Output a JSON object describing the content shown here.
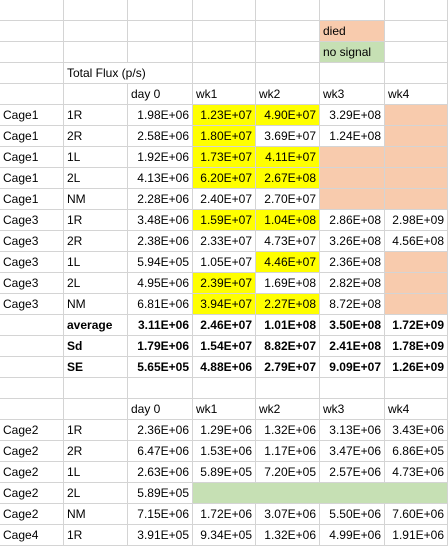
{
  "legend": {
    "died": "died",
    "no_signal": "no signal"
  },
  "title": "Total Flux (p/s)",
  "table1": {
    "headers": [
      "day 0",
      "wk1",
      "wk2",
      "wk3",
      "wk4"
    ],
    "rows": [
      {
        "cage": "Cage1",
        "id": "1R",
        "vals": [
          "1.98E+06",
          "1.23E+07",
          "4.90E+07",
          "3.29E+08",
          ""
        ]
      },
      {
        "cage": "Cage1",
        "id": "2R",
        "vals": [
          "2.58E+06",
          "1.80E+07",
          "3.69E+07",
          "1.24E+08",
          ""
        ]
      },
      {
        "cage": "Cage1",
        "id": "1L",
        "vals": [
          "1.92E+06",
          "1.73E+07",
          "4.11E+07",
          "",
          ""
        ]
      },
      {
        "cage": "Cage1",
        "id": "2L",
        "vals": [
          "4.13E+06",
          "6.20E+07",
          "2.67E+08",
          "",
          ""
        ]
      },
      {
        "cage": "Cage1",
        "id": "NM",
        "vals": [
          "2.28E+06",
          "2.40E+07",
          "2.70E+07",
          "",
          ""
        ]
      },
      {
        "cage": "Cage3",
        "id": "1R",
        "vals": [
          "3.48E+06",
          "1.59E+07",
          "1.04E+08",
          "2.86E+08",
          "2.98E+09"
        ]
      },
      {
        "cage": "Cage3",
        "id": "2R",
        "vals": [
          "2.38E+06",
          "2.33E+07",
          "4.73E+07",
          "3.26E+08",
          "4.56E+08"
        ]
      },
      {
        "cage": "Cage3",
        "id": "1L",
        "vals": [
          "5.94E+05",
          "1.05E+07",
          "4.46E+07",
          "2.36E+08",
          ""
        ]
      },
      {
        "cage": "Cage3",
        "id": "2L",
        "vals": [
          "4.95E+06",
          "2.39E+07",
          "1.69E+08",
          "2.82E+08",
          ""
        ]
      },
      {
        "cage": "Cage3",
        "id": "NM",
        "vals": [
          "6.81E+06",
          "3.94E+07",
          "2.27E+08",
          "8.72E+08",
          ""
        ]
      }
    ],
    "stats": [
      {
        "label": "average",
        "vals": [
          "3.11E+06",
          "2.46E+07",
          "1.01E+08",
          "3.50E+08",
          "1.72E+09"
        ]
      },
      {
        "label": "Sd",
        "vals": [
          "1.79E+06",
          "1.54E+07",
          "8.82E+07",
          "2.41E+08",
          "1.78E+09"
        ]
      },
      {
        "label": "SE",
        "vals": [
          "5.65E+05",
          "4.88E+06",
          "2.79E+07",
          "9.09E+07",
          "1.26E+09"
        ]
      }
    ]
  },
  "table2": {
    "headers": [
      "day 0",
      "wk1",
      "wk2",
      "wk3",
      "wk4"
    ],
    "rows": [
      {
        "cage": "Cage2",
        "id": "1R",
        "vals": [
          "2.36E+06",
          "1.29E+06",
          "1.32E+06",
          "3.13E+06",
          "3.43E+06"
        ]
      },
      {
        "cage": "Cage2",
        "id": "2R",
        "vals": [
          "6.47E+06",
          "1.53E+06",
          "1.17E+06",
          "3.47E+06",
          "6.86E+05"
        ]
      },
      {
        "cage": "Cage2",
        "id": "1L",
        "vals": [
          "2.63E+06",
          "5.89E+05",
          "7.20E+05",
          "2.57E+06",
          "4.73E+06"
        ]
      },
      {
        "cage": "Cage2",
        "id": "2L",
        "vals": [
          "5.89E+05",
          "",
          "",
          "",
          ""
        ]
      },
      {
        "cage": "Cage2",
        "id": "NM",
        "vals": [
          "7.15E+06",
          "1.72E+06",
          "3.07E+06",
          "5.50E+06",
          "7.60E+06"
        ]
      },
      {
        "cage": "Cage4",
        "id": "1R",
        "vals": [
          "3.91E+05",
          "9.34E+05",
          "1.32E+06",
          "4.99E+06",
          "1.91E+06"
        ]
      }
    ]
  },
  "colors": {
    "highlight": "#ffff00",
    "died": "#f8cbad",
    "no_signal": "#c6e0b4"
  }
}
